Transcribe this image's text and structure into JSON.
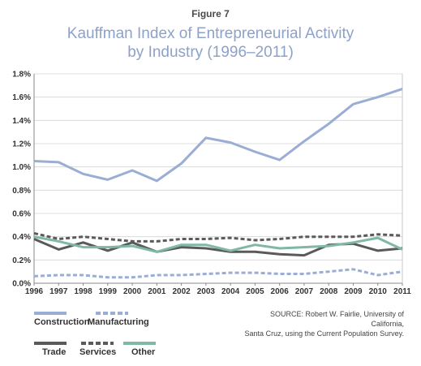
{
  "figure_label": "Figure 7",
  "title_line1": "Kauffman Index of Entrepreneurial Activity",
  "title_line2": "by Industry (1996–2011)",
  "source_line1": "SOURCE: Robert W. Fairlie, University of California,",
  "source_line2": "Santa Cruz, using the Current Population Survey.",
  "colors": {
    "construction": "#9aadd4",
    "manufacturing": "#9aadd4",
    "trade": "#5a5a5a",
    "services": "#5a5a5a",
    "other": "#7fb8a4"
  },
  "chart_data": {
    "type": "line",
    "x": [
      1996,
      1997,
      1998,
      1999,
      2000,
      2001,
      2002,
      2003,
      2004,
      2005,
      2006,
      2007,
      2008,
      2009,
      2010,
      2011
    ],
    "ylim": [
      0,
      1.8
    ],
    "yticks": [
      "0.0%",
      "0.2%",
      "0.4%",
      "0.6%",
      "0.8%",
      "1.0%",
      "1.2%",
      "1.4%",
      "1.6%",
      "1.8%"
    ],
    "grid": true,
    "legend": "bottom-left",
    "series": [
      {
        "name": "Construction",
        "style": "solid",
        "values": [
          1.05,
          1.04,
          0.94,
          0.89,
          0.97,
          0.88,
          1.03,
          1.25,
          1.21,
          1.13,
          1.06,
          1.22,
          1.37,
          1.54,
          1.6,
          1.67
        ]
      },
      {
        "name": "Manufacturing",
        "style": "dashed",
        "values": [
          0.06,
          0.07,
          0.07,
          0.05,
          0.05,
          0.07,
          0.07,
          0.08,
          0.09,
          0.09,
          0.08,
          0.08,
          0.1,
          0.12,
          0.07,
          0.1
        ]
      },
      {
        "name": "Trade",
        "style": "solid",
        "values": [
          0.38,
          0.29,
          0.35,
          0.28,
          0.35,
          0.27,
          0.31,
          0.3,
          0.27,
          0.27,
          0.25,
          0.24,
          0.33,
          0.34,
          0.28,
          0.3
        ]
      },
      {
        "name": "Services",
        "style": "dashed",
        "values": [
          0.43,
          0.38,
          0.4,
          0.38,
          0.36,
          0.36,
          0.38,
          0.38,
          0.39,
          0.37,
          0.38,
          0.4,
          0.4,
          0.4,
          0.42,
          0.41
        ]
      },
      {
        "name": "Other",
        "style": "solid",
        "values": [
          0.4,
          0.36,
          0.31,
          0.31,
          0.32,
          0.27,
          0.33,
          0.33,
          0.28,
          0.33,
          0.3,
          0.31,
          0.32,
          0.35,
          0.39,
          0.29
        ]
      }
    ]
  }
}
